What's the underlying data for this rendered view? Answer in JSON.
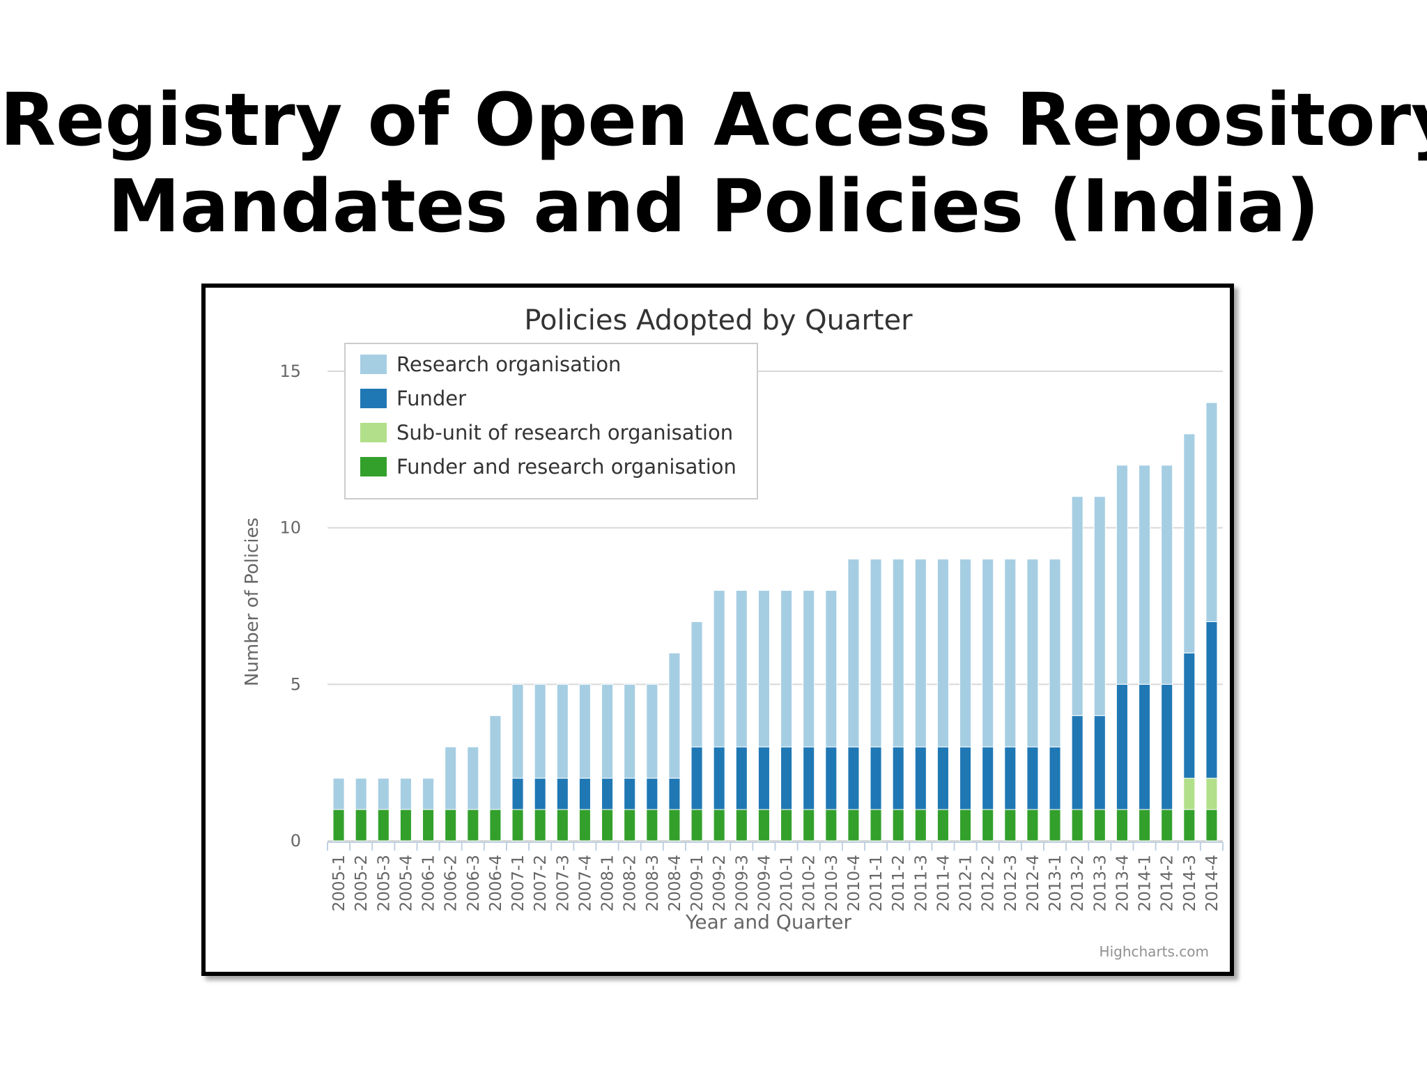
{
  "slide": {
    "title_line1": "Registry of Open Access Repository",
    "title_line2": "Mandates and Policies (India)"
  },
  "chart_data": {
    "type": "bar",
    "stacked": true,
    "title": "Policies Adopted by Quarter",
    "xlabel": "Year and Quarter",
    "ylabel": "Number of Policies",
    "ylim": [
      0,
      15
    ],
    "yticks": [
      0,
      5,
      10,
      15
    ],
    "grid": true,
    "legend": "top-left",
    "credit": "Highcharts.com",
    "categories": [
      "2005-1",
      "2005-2",
      "2005-3",
      "2005-4",
      "2006-1",
      "2006-2",
      "2006-3",
      "2006-4",
      "2007-1",
      "2007-2",
      "2007-3",
      "2007-4",
      "2008-1",
      "2008-2",
      "2008-3",
      "2008-4",
      "2009-1",
      "2009-2",
      "2009-3",
      "2009-4",
      "2010-1",
      "2010-2",
      "2010-3",
      "2010-4",
      "2011-1",
      "2011-2",
      "2011-3",
      "2011-4",
      "2012-1",
      "2012-2",
      "2012-3",
      "2012-4",
      "2013-1",
      "2013-2",
      "2013-3",
      "2013-4",
      "2014-1",
      "2014-2",
      "2014-3",
      "2014-4"
    ],
    "series": [
      {
        "name": "Research organisation",
        "color": "#a6cee3",
        "values": [
          1,
          1,
          1,
          1,
          1,
          2,
          2,
          3,
          3,
          3,
          3,
          3,
          3,
          3,
          3,
          4,
          4,
          5,
          5,
          5,
          5,
          5,
          5,
          6,
          6,
          6,
          6,
          6,
          6,
          6,
          6,
          6,
          6,
          7,
          7,
          7,
          7,
          7,
          7,
          7
        ]
      },
      {
        "name": "Funder",
        "color": "#1f78b4",
        "values": [
          0,
          0,
          0,
          0,
          0,
          0,
          0,
          0,
          1,
          1,
          1,
          1,
          1,
          1,
          1,
          1,
          2,
          2,
          2,
          2,
          2,
          2,
          2,
          2,
          2,
          2,
          2,
          2,
          2,
          2,
          2,
          2,
          2,
          3,
          3,
          4,
          4,
          4,
          4,
          5
        ]
      },
      {
        "name": "Sub-unit of research organisation",
        "color": "#b2df8a",
        "values": [
          0,
          0,
          0,
          0,
          0,
          0,
          0,
          0,
          0,
          0,
          0,
          0,
          0,
          0,
          0,
          0,
          0,
          0,
          0,
          0,
          0,
          0,
          0,
          0,
          0,
          0,
          0,
          0,
          0,
          0,
          0,
          0,
          0,
          0,
          0,
          0,
          0,
          0,
          1,
          1
        ]
      },
      {
        "name": "Funder and research organisation",
        "color": "#33a02c",
        "values": [
          1,
          1,
          1,
          1,
          1,
          1,
          1,
          1,
          1,
          1,
          1,
          1,
          1,
          1,
          1,
          1,
          1,
          1,
          1,
          1,
          1,
          1,
          1,
          1,
          1,
          1,
          1,
          1,
          1,
          1,
          1,
          1,
          1,
          1,
          1,
          1,
          1,
          1,
          1,
          1
        ]
      }
    ]
  }
}
